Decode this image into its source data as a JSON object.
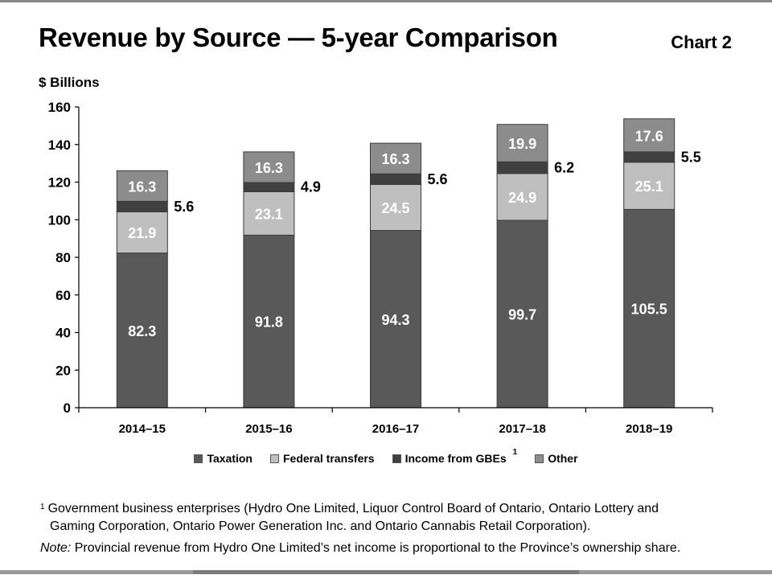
{
  "header": {
    "title": "Revenue by Source — 5-year Comparison",
    "chart_number": "Chart 2"
  },
  "colors": {
    "Taxation": "#595959",
    "Federal transfers": "#bfbfbf",
    "Income from GBEs": "#404040",
    "Other": "#8c8c8c"
  },
  "chart_data": {
    "type": "bar",
    "stacked": true,
    "title": "Revenue by Source — 5-year Comparison",
    "ylabel": "$ Billions",
    "xlabel": "",
    "ylim": [
      0,
      160
    ],
    "yticks": [
      0,
      20,
      40,
      60,
      80,
      100,
      120,
      140,
      160
    ],
    "categories": [
      "2014–15",
      "2015–16",
      "2016–17",
      "2017–18",
      "2018–19"
    ],
    "series": [
      {
        "name": "Taxation",
        "values": [
          82.3,
          91.8,
          94.3,
          99.7,
          105.5
        ]
      },
      {
        "name": "Federal transfers",
        "values": [
          21.9,
          23.1,
          24.5,
          24.9,
          25.1
        ]
      },
      {
        "name": "Income from GBEs",
        "values": [
          5.6,
          4.9,
          5.6,
          6.2,
          5.5
        ]
      },
      {
        "name": "Other",
        "values": [
          16.3,
          16.3,
          16.3,
          19.9,
          17.6
        ]
      }
    ],
    "legend": {
      "position": "bottom",
      "entries": [
        "Taxation",
        "Federal transfers",
        "Income from GBEs",
        "Other"
      ],
      "gbe_superscript": "1"
    }
  },
  "footnotes": {
    "marker": "1",
    "line1": "Government business enterprises (Hydro One Limited, Liquor Control Board of Ontario, Ontario Lottery and",
    "line2": "Gaming Corporation, Ontario Power Generation Inc. and Ontario Cannabis Retail Corporation).",
    "note_label": "Note:",
    "note_text": "Provincial revenue from Hydro One Limited’s net income is proportional to the Province’s ownership share."
  }
}
